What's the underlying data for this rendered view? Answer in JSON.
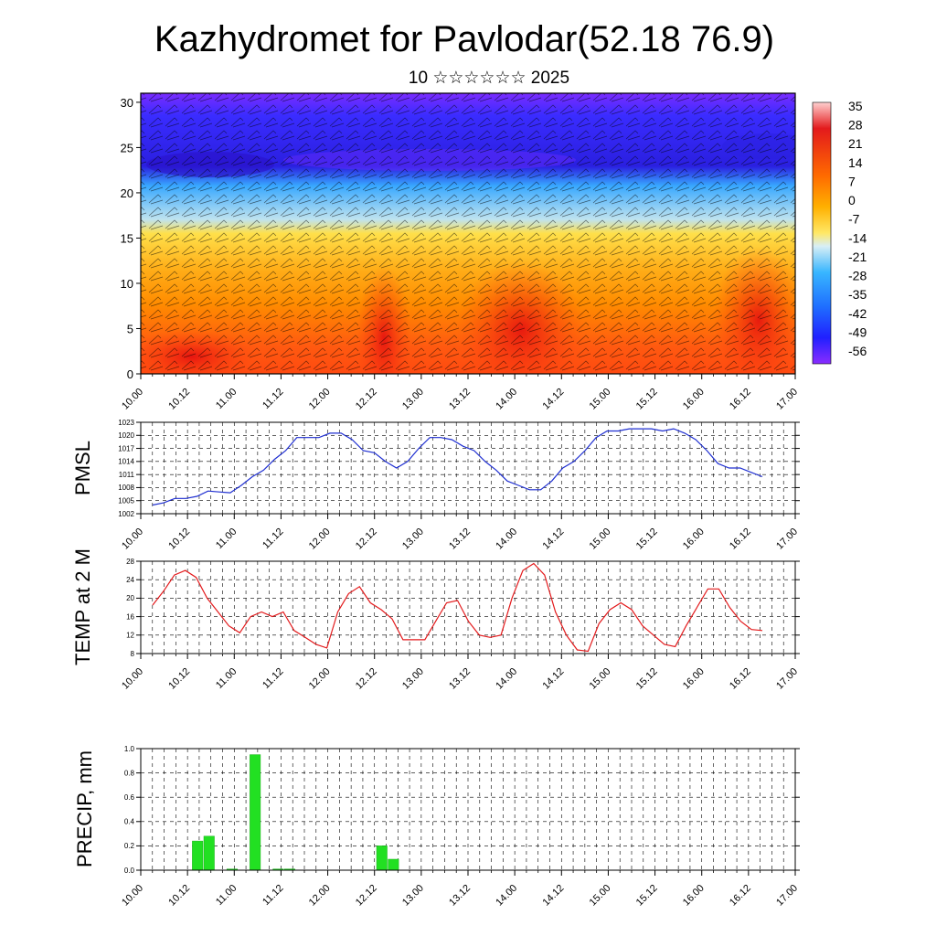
{
  "header": {
    "title": "Kazhydromet for Pavlodar(52.18 76.9)",
    "subtitle": "10 ☆☆☆☆☆☆ 2025"
  },
  "chart_data": [
    {
      "type": "heatmap",
      "title": "Kazhydromet for Pavlodar(52.18 76.9)",
      "subtitle": "10 ☆☆☆☆☆☆ 2025",
      "x_ticks": [
        "10.00",
        "10.12",
        "11.00",
        "11.12",
        "12.00",
        "12.12",
        "13.00",
        "13.12",
        "14.00",
        "14.12",
        "15.00",
        "15.12",
        "16.00",
        "16.12",
        "17.00"
      ],
      "y_ticks": [
        0,
        5,
        10,
        15,
        20,
        25,
        30
      ],
      "ylim": [
        0,
        31
      ],
      "colorbar_labels": [
        "35",
        "28",
        "21",
        "14",
        "7",
        "0",
        "-7",
        "-14",
        "-21",
        "-28",
        "-35",
        "-42",
        "-49",
        "-56"
      ],
      "colors": {
        "warm": "#e31a1c",
        "orange": "#ff8c00",
        "yellow": "#ffe04a",
        "cyan": "#38b6ff",
        "blue": "#2020ff",
        "violet": "#7a2cff"
      }
    },
    {
      "type": "line",
      "ylabel": "PMSL",
      "y_ticks": [
        1002,
        1005,
        1008,
        1011,
        1014,
        1017,
        1020,
        1023
      ],
      "ylim": [
        1002,
        1023
      ],
      "x_ticks": [
        "10.00",
        "10.12",
        "11.00",
        "11.12",
        "12.00",
        "12.12",
        "13.00",
        "13.12",
        "14.00",
        "14.12",
        "15.00",
        "15.12",
        "16.00",
        "16.12",
        "17.00"
      ],
      "color": "#1f2fd1",
      "values": [
        1004,
        1004.5,
        1005.5,
        1005.5,
        1006,
        1007.2,
        1007,
        1006.8,
        1008.5,
        1010.5,
        1012,
        1014.5,
        1016.5,
        1019.5,
        1019.5,
        1019.5,
        1020.5,
        1020.5,
        1019,
        1016.5,
        1016,
        1014,
        1012.5,
        1014,
        1017,
        1019.5,
        1019.5,
        1019,
        1017.5,
        1016.5,
        1014,
        1012,
        1009.5,
        1008.5,
        1007.5,
        1007.5,
        1009.5,
        1012.5,
        1014,
        1016.5,
        1019.5,
        1021,
        1021,
        1021.5,
        1021.5,
        1021.5,
        1021,
        1021.5,
        1020.5,
        1019,
        1016.5,
        1013.5,
        1012.5,
        1012.5,
        1011.5,
        1010.5
      ]
    },
    {
      "type": "line",
      "ylabel": "TEMP at 2 M",
      "y_ticks": [
        8,
        12,
        16,
        20,
        24,
        28
      ],
      "ylim": [
        8,
        28
      ],
      "x_ticks": [
        "10.00",
        "10.12",
        "11.00",
        "11.12",
        "12.00",
        "12.12",
        "13.00",
        "13.12",
        "14.00",
        "14.12",
        "15.00",
        "15.12",
        "16.00",
        "16.12",
        "17.00"
      ],
      "color": "#e31a1c",
      "values": [
        18.5,
        21.5,
        25,
        26,
        24.5,
        20,
        17,
        14,
        12.5,
        16,
        17,
        16,
        17,
        13,
        11.5,
        10,
        9.2,
        17,
        21,
        22.5,
        19,
        17.5,
        15.5,
        11,
        11,
        11,
        15,
        19,
        19.5,
        15,
        12,
        11.5,
        12,
        20,
        26,
        27.5,
        25,
        17,
        12,
        8.8,
        8.5,
        14.5,
        17.5,
        19,
        17.5,
        14,
        12,
        10,
        9.5,
        14,
        18,
        22,
        22,
        18,
        15,
        13.2,
        13
      ]
    },
    {
      "type": "bar",
      "ylabel": "PRECIP, mm",
      "y_ticks": [
        "0.0",
        "0.2",
        "0.4",
        "0.6",
        "0.8",
        "1.0"
      ],
      "ylim": [
        0,
        1.0
      ],
      "x_ticks": [
        "10.00",
        "10.12",
        "11.00",
        "11.12",
        "12.00",
        "12.12",
        "13.00",
        "13.12",
        "14.00",
        "14.12",
        "15.00",
        "15.12",
        "16.00",
        "16.12",
        "17.00"
      ],
      "color": "#22e022",
      "values": [
        0,
        0,
        0,
        0,
        0.24,
        0.28,
        0,
        0.01,
        0,
        0.95,
        0,
        0.01,
        0.01,
        0,
        0,
        0,
        0,
        0,
        0,
        0,
        0.2,
        0.09,
        0,
        0,
        0,
        0,
        0,
        0,
        0,
        0,
        0,
        0,
        0,
        0,
        0,
        0,
        0,
        0,
        0,
        0,
        0,
        0,
        0,
        0,
        0,
        0,
        0,
        0,
        0,
        0,
        0,
        0,
        0,
        0,
        0,
        0
      ]
    }
  ]
}
